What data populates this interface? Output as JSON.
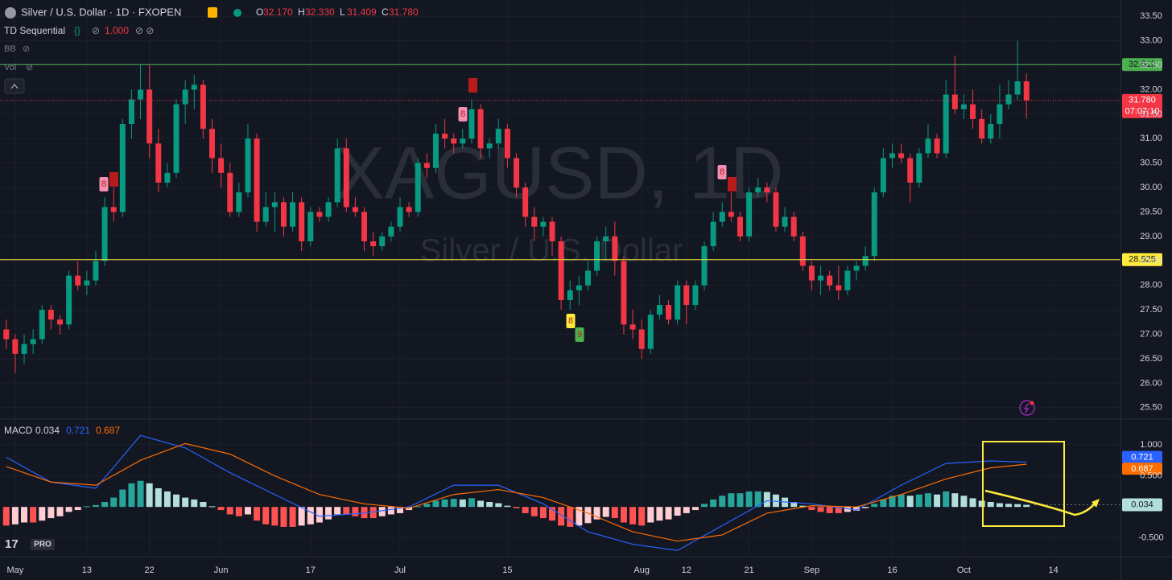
{
  "header": {
    "symbol": "Silver / U.S. Dollar · 1D · FXOPEN",
    "ohlc_legend": [
      {
        "letter": "O",
        "text": "32.170"
      },
      {
        "letter": "H",
        "text": "32.330"
      },
      {
        "letter": "L",
        "text": "31.409"
      },
      {
        "letter": "C",
        "text": "31.780"
      }
    ],
    "indicators": [
      {
        "name": "TD Sequential",
        "param": "1.000"
      },
      {
        "name": "BB"
      },
      {
        "name": "Vol"
      }
    ],
    "logo": "PRO"
  },
  "chart_data": {
    "type": "candlestick",
    "watermark": {
      "title": "XAGUSD, 1D",
      "subtitle": "Silver / U.S. Dollar"
    },
    "up_color": "#089981",
    "down_color": "#f23645",
    "ylim": [
      25.25,
      33.75
    ],
    "yticks": [
      {
        "value": 25.5,
        "label": "25.50"
      },
      {
        "value": 26,
        "label": "26.00"
      },
      {
        "value": 26.5,
        "label": "26.50"
      },
      {
        "value": 27,
        "label": "27.00"
      },
      {
        "value": 27.5,
        "label": "27.50"
      },
      {
        "value": 28,
        "label": "28.00"
      },
      {
        "value": 28.5,
        "label": "28.50"
      },
      {
        "value": 29,
        "label": "29.00"
      },
      {
        "value": 29.5,
        "label": "29.50"
      },
      {
        "value": 30,
        "label": "30.00"
      },
      {
        "value": 30.5,
        "label": "30.50"
      },
      {
        "value": 31,
        "label": "31.00"
      },
      {
        "value": 31.5,
        "label": "31.50"
      },
      {
        "value": 32,
        "label": "32.00"
      },
      {
        "value": 32.5,
        "label": "32.50"
      },
      {
        "value": 33,
        "label": "33.00"
      },
      {
        "value": 33.5,
        "label": "33.50"
      }
    ],
    "xlim": [
      -0.7,
      124.5
    ],
    "xticks": [
      {
        "value": 1,
        "label": "May"
      },
      {
        "value": 9,
        "label": "13"
      },
      {
        "value": 16,
        "label": "22"
      },
      {
        "value": 24,
        "label": "Jun"
      },
      {
        "value": 34,
        "label": "17"
      },
      {
        "value": 44,
        "label": "Jul"
      },
      {
        "value": 56,
        "label": "15"
      },
      {
        "value": 71,
        "label": "Aug"
      },
      {
        "value": 76,
        "label": "12"
      },
      {
        "value": 83,
        "label": "21"
      },
      {
        "value": 90,
        "label": "Sep"
      },
      {
        "value": 99,
        "label": "16"
      },
      {
        "value": 107,
        "label": "Oct"
      },
      {
        "value": 117,
        "label": "14"
      }
    ],
    "ohlc": [
      [
        27.1,
        27.3,
        26.7,
        26.9
      ],
      [
        26.9,
        27.0,
        26.2,
        26.6
      ],
      [
        26.6,
        27.0,
        26.4,
        26.8
      ],
      [
        26.8,
        27.1,
        26.6,
        26.9
      ],
      [
        26.9,
        27.6,
        26.8,
        27.5
      ],
      [
        27.5,
        27.6,
        27.1,
        27.3
      ],
      [
        27.3,
        27.4,
        27.0,
        27.2
      ],
      [
        27.2,
        28.3,
        27.1,
        28.2
      ],
      [
        28.2,
        28.5,
        27.9,
        28.0
      ],
      [
        28.0,
        28.3,
        27.8,
        28.1
      ],
      [
        28.1,
        28.7,
        28.0,
        28.5
      ],
      [
        28.5,
        29.8,
        28.4,
        29.6
      ],
      [
        29.6,
        30.0,
        29.3,
        29.5
      ],
      [
        29.5,
        31.4,
        29.4,
        31.3
      ],
      [
        31.3,
        32.0,
        31.0,
        31.8
      ],
      [
        31.8,
        32.5,
        31.4,
        32.0
      ],
      [
        32.0,
        32.5,
        30.6,
        30.9
      ],
      [
        30.9,
        31.2,
        29.9,
        30.1
      ],
      [
        30.1,
        30.5,
        30.0,
        30.3
      ],
      [
        30.3,
        31.8,
        30.2,
        31.7
      ],
      [
        31.7,
        32.2,
        31.3,
        32.0
      ],
      [
        32.0,
        32.3,
        31.6,
        32.1
      ],
      [
        32.1,
        32.2,
        31.0,
        31.2
      ],
      [
        31.2,
        31.4,
        30.3,
        30.6
      ],
      [
        30.6,
        30.9,
        30.0,
        30.3
      ],
      [
        30.3,
        30.5,
        29.4,
        29.5
      ],
      [
        29.5,
        30.1,
        29.4,
        29.9
      ],
      [
        29.9,
        31.3,
        29.8,
        31.0
      ],
      [
        31.0,
        31.1,
        29.1,
        29.3
      ],
      [
        29.3,
        29.9,
        29.2,
        29.6
      ],
      [
        29.6,
        29.9,
        29.1,
        29.7
      ],
      [
        29.7,
        29.8,
        29.0,
        29.2
      ],
      [
        29.2,
        29.9,
        29.1,
        29.7
      ],
      [
        29.7,
        29.8,
        28.7,
        28.9
      ],
      [
        28.9,
        29.6,
        28.8,
        29.5
      ],
      [
        29.5,
        29.6,
        29.3,
        29.4
      ],
      [
        29.4,
        29.8,
        29.3,
        29.7
      ],
      [
        29.7,
        31.0,
        29.6,
        30.8
      ],
      [
        30.8,
        31.0,
        29.5,
        29.6
      ],
      [
        29.6,
        29.8,
        29.4,
        29.5
      ],
      [
        29.5,
        29.6,
        28.7,
        28.9
      ],
      [
        28.9,
        29.1,
        28.6,
        28.8
      ],
      [
        28.8,
        29.1,
        28.7,
        29.0
      ],
      [
        29.0,
        29.3,
        28.9,
        29.2
      ],
      [
        29.2,
        29.8,
        29.1,
        29.6
      ],
      [
        29.6,
        29.7,
        29.4,
        29.5
      ],
      [
        29.5,
        30.6,
        29.4,
        30.5
      ],
      [
        30.5,
        30.7,
        30.2,
        30.4
      ],
      [
        30.4,
        31.3,
        30.3,
        31.1
      ],
      [
        31.1,
        31.4,
        30.8,
        31.0
      ],
      [
        31.0,
        31.1,
        30.7,
        30.9
      ],
      [
        30.9,
        31.2,
        30.8,
        31.0
      ],
      [
        31.0,
        31.8,
        30.9,
        31.6
      ],
      [
        31.6,
        31.7,
        30.6,
        30.8
      ],
      [
        30.8,
        31.0,
        30.6,
        30.9
      ],
      [
        30.9,
        31.4,
        30.8,
        31.2
      ],
      [
        31.2,
        31.3,
        30.4,
        30.6
      ],
      [
        30.6,
        30.7,
        29.8,
        30.0
      ],
      [
        30.0,
        30.1,
        29.2,
        29.4
      ],
      [
        29.4,
        29.6,
        28.9,
        29.2
      ],
      [
        29.2,
        29.4,
        29.0,
        29.3
      ],
      [
        29.3,
        29.4,
        28.6,
        28.9
      ],
      [
        28.9,
        29.0,
        27.5,
        27.7
      ],
      [
        27.7,
        28.1,
        27.5,
        27.9
      ],
      [
        27.9,
        28.2,
        27.6,
        28.0
      ],
      [
        28.0,
        28.5,
        27.9,
        28.3
      ],
      [
        28.3,
        29.0,
        28.2,
        28.9
      ],
      [
        28.9,
        29.2,
        28.5,
        29.0
      ],
      [
        29.0,
        29.3,
        28.2,
        28.5
      ],
      [
        28.5,
        28.6,
        27.0,
        27.2
      ],
      [
        27.2,
        27.5,
        26.9,
        27.1
      ],
      [
        27.1,
        27.3,
        26.5,
        26.7
      ],
      [
        26.7,
        27.5,
        26.6,
        27.4
      ],
      [
        27.4,
        27.8,
        27.3,
        27.6
      ],
      [
        27.6,
        27.7,
        27.2,
        27.3
      ],
      [
        27.3,
        28.1,
        27.2,
        28.0
      ],
      [
        28.0,
        28.1,
        27.2,
        27.6
      ],
      [
        27.6,
        28.1,
        27.5,
        28.0
      ],
      [
        28.0,
        28.9,
        27.9,
        28.8
      ],
      [
        28.8,
        29.5,
        28.7,
        29.3
      ],
      [
        29.3,
        29.7,
        29.2,
        29.5
      ],
      [
        29.5,
        29.9,
        29.3,
        29.4
      ],
      [
        29.4,
        29.5,
        28.9,
        29.0
      ],
      [
        29.0,
        30.0,
        28.9,
        29.9
      ],
      [
        29.9,
        30.2,
        29.8,
        30.0
      ],
      [
        30.0,
        30.1,
        29.7,
        29.9
      ],
      [
        29.9,
        30.0,
        29.1,
        29.2
      ],
      [
        29.2,
        29.6,
        29.1,
        29.4
      ],
      [
        29.4,
        29.5,
        28.9,
        29.0
      ],
      [
        29.0,
        29.1,
        28.3,
        28.4
      ],
      [
        28.4,
        28.5,
        27.9,
        28.1
      ],
      [
        28.1,
        28.4,
        27.8,
        28.2
      ],
      [
        28.2,
        28.3,
        27.9,
        28.0
      ],
      [
        28.0,
        28.4,
        27.7,
        27.9
      ],
      [
        27.9,
        28.4,
        27.8,
        28.3
      ],
      [
        28.3,
        28.5,
        28.1,
        28.4
      ],
      [
        28.4,
        28.8,
        28.3,
        28.6
      ],
      [
        28.6,
        30.0,
        28.5,
        29.9
      ],
      [
        29.9,
        30.8,
        29.8,
        30.6
      ],
      [
        30.6,
        30.9,
        30.4,
        30.7
      ],
      [
        30.7,
        30.9,
        30.5,
        30.6
      ],
      [
        30.6,
        30.7,
        29.7,
        30.1
      ],
      [
        30.1,
        30.8,
        30.0,
        30.7
      ],
      [
        30.7,
        31.3,
        30.6,
        31.0
      ],
      [
        31.0,
        31.1,
        30.6,
        30.7
      ],
      [
        30.7,
        32.2,
        30.6,
        31.9
      ],
      [
        31.9,
        32.7,
        31.5,
        31.6
      ],
      [
        31.6,
        31.9,
        31.4,
        31.7
      ],
      [
        31.7,
        32.0,
        31.2,
        31.4
      ],
      [
        31.4,
        31.6,
        30.9,
        31.0
      ],
      [
        31.0,
        31.5,
        30.9,
        31.3
      ],
      [
        31.3,
        32.1,
        31.0,
        31.7
      ],
      [
        31.7,
        32.2,
        31.6,
        31.9
      ],
      [
        31.9,
        33.0,
        31.8,
        32.17
      ],
      [
        32.17,
        32.33,
        31.409,
        31.78
      ]
    ],
    "price_lines": [
      {
        "value": 32.512,
        "label": "32.512",
        "color": "#4caf50"
      },
      {
        "value": 28.525,
        "label": "28.525",
        "color": "#ffeb3b"
      }
    ],
    "last_price": {
      "value": 31.78,
      "label": "31.780",
      "countdown": "07:07:10",
      "color": "#f23645"
    },
    "td_labels": [
      "8",
      "8",
      "8",
      "8",
      "9"
    ]
  },
  "macd_pane": {
    "type": "macd",
    "title": "MACD",
    "ylim": [
      -0.8,
      1.4
    ],
    "yticks": [
      {
        "value": 1,
        "label": "1.000"
      },
      {
        "value": 0.5,
        "label": "0.500"
      },
      {
        "value": -0.5,
        "label": "-0.500"
      }
    ],
    "histogram": [
      -0.3,
      -0.28,
      -0.25,
      -0.25,
      -0.22,
      -0.18,
      -0.15,
      -0.08,
      -0.05,
      0.01,
      0.03,
      0.08,
      0.15,
      0.28,
      0.38,
      0.42,
      0.38,
      0.3,
      0.25,
      0.2,
      0.15,
      0.12,
      0.08,
      0.01,
      -0.05,
      -0.12,
      -0.15,
      -0.12,
      -0.22,
      -0.28,
      -0.3,
      -0.32,
      -0.32,
      -0.3,
      -0.28,
      -0.25,
      -0.2,
      -0.12,
      -0.12,
      -0.15,
      -0.18,
      -0.18,
      -0.15,
      -0.12,
      -0.1,
      -0.05,
      0.01,
      0.05,
      0.1,
      0.12,
      0.13,
      0.12,
      0.14,
      0.1,
      0.08,
      0.06,
      0.02,
      -0.02,
      -0.1,
      -0.15,
      -0.18,
      -0.22,
      -0.3,
      -0.32,
      -0.3,
      -0.26,
      -0.2,
      -0.16,
      -0.18,
      -0.25,
      -0.28,
      -0.3,
      -0.25,
      -0.22,
      -0.2,
      -0.14,
      -0.1,
      -0.05,
      0.05,
      0.12,
      0.18,
      0.22,
      0.22,
      0.25,
      0.25,
      0.24,
      0.2,
      0.15,
      0.08,
      0.02,
      -0.05,
      -0.08,
      -0.1,
      -0.1,
      -0.08,
      -0.06,
      -0.02,
      0.05,
      0.12,
      0.18,
      0.2,
      0.18,
      0.2,
      0.22,
      0.2,
      0.25,
      0.22,
      0.18,
      0.14,
      0.1,
      0.08,
      0.06,
      0.05,
      0.045,
      0.034
    ],
    "hist_colors": {
      "up_rising": "#26a69a",
      "up_falling": "#b2dfdb",
      "down_falling": "#ff5252",
      "down_rising": "#ffcdd2"
    },
    "x": [
      0,
      5,
      10,
      15,
      20,
      25,
      30,
      35,
      40,
      45,
      50,
      55,
      60,
      65,
      70,
      75,
      80,
      85,
      90,
      95,
      100,
      105,
      110,
      114
    ],
    "series": [
      {
        "name": "MACD",
        "color": "#2962ff",
        "values": [
          0.8,
          0.4,
          0.3,
          1.15,
          0.95,
          0.55,
          0.2,
          -0.15,
          -0.1,
          0.0,
          0.35,
          0.35,
          0.05,
          -0.4,
          -0.6,
          -0.7,
          -0.3,
          0.1,
          0.05,
          -0.05,
          0.35,
          0.7,
          0.74,
          0.721
        ],
        "last": {
          "value": 0.721,
          "label": "0.721"
        }
      },
      {
        "name": "Signal",
        "color": "#ff6d00",
        "values": [
          0.65,
          0.4,
          0.35,
          0.75,
          1.02,
          0.85,
          0.5,
          0.2,
          0.05,
          -0.02,
          0.2,
          0.28,
          0.15,
          -0.1,
          -0.4,
          -0.55,
          -0.45,
          -0.1,
          0.02,
          0.0,
          0.2,
          0.45,
          0.63,
          0.687
        ],
        "last": {
          "value": 0.687,
          "label": "0.687"
        }
      }
    ],
    "hist_last": {
      "value": 0.034,
      "label": "0.034",
      "color": "#b2dfdb"
    }
  }
}
